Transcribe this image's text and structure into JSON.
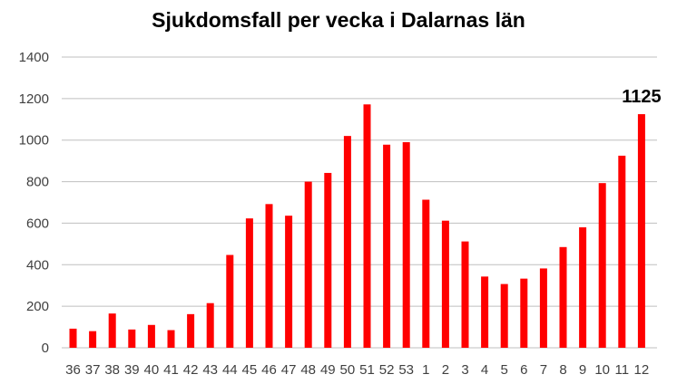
{
  "chart_data": {
    "type": "bar",
    "title": "Sjukdomsfall per vecka i Dalarnas län",
    "xlabel": "",
    "ylabel": "",
    "categories": [
      "36",
      "37",
      "38",
      "39",
      "40",
      "41",
      "42",
      "43",
      "44",
      "45",
      "46",
      "47",
      "48",
      "49",
      "50",
      "51",
      "52",
      "53",
      "1",
      "2",
      "3",
      "4",
      "5",
      "6",
      "7",
      "8",
      "9",
      "10",
      "11",
      "12"
    ],
    "values": [
      92,
      80,
      165,
      88,
      110,
      85,
      162,
      215,
      447,
      623,
      692,
      636,
      800,
      842,
      1020,
      1172,
      978,
      990,
      713,
      612,
      512,
      343,
      307,
      333,
      382,
      485,
      580,
      793,
      925,
      1125
    ],
    "ylim": [
      0,
      1400
    ],
    "yticks": [
      0,
      200,
      400,
      600,
      800,
      1000,
      1200,
      1400
    ],
    "grid": true,
    "legend": "none",
    "bar_color": "#ff0000",
    "annotations": [
      {
        "category": "12",
        "text": "1125"
      }
    ]
  }
}
